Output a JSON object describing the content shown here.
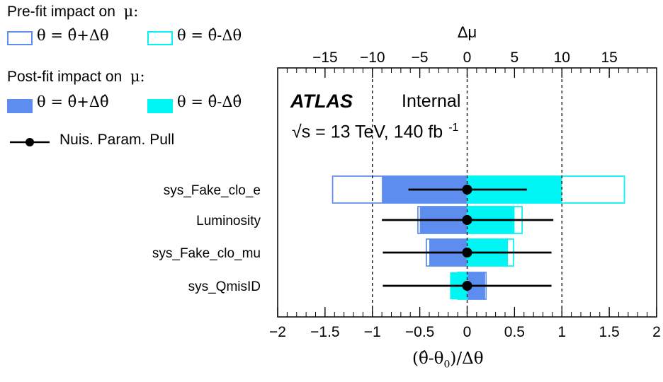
{
  "legend": {
    "prefit_title": "Pre-fit impact on",
    "postfit_title": "Post-fit impact on",
    "mu_symbol": "μ:",
    "prefit_up_label": "θ = θ̂+Δθ",
    "prefit_down_label": "θ = θ̂-Δθ",
    "postfit_up_label": "θ = θ̂+Δθ̂",
    "postfit_down_label": "θ = θ̂-Δθ̂",
    "pull_label": "Nuis. Param. Pull"
  },
  "annotations": {
    "atlas": "ATLAS",
    "internal": "Internal",
    "energy_text": "√s = 13 TeV, 140 fb",
    "lumi_exp": "-1"
  },
  "colors": {
    "up": "#5e8df0",
    "down": "#00f5f5"
  },
  "chart_data": {
    "type": "bar",
    "orientation": "horizontal",
    "title": "",
    "xlabel": "(θ̂-θ0)/Δθ",
    "xlim": [
      -2,
      2
    ],
    "xticks": [
      "−2",
      "−1.5",
      "−1",
      "−0.5",
      "0",
      "0.5",
      "1",
      "1.5",
      "2"
    ],
    "x2label": "Δμ",
    "x2lim": [
      -20,
      20
    ],
    "x2ticks": [
      "−15",
      "−10",
      "−5",
      "0",
      "5",
      "10",
      "15"
    ],
    "categories": [
      "sys_Fake_clo_e",
      "Luminosity",
      "sys_Fake_clo_mu",
      "sys_QmisID"
    ],
    "series": [
      {
        "name": "Pre-fit θ = θ̂+Δθ",
        "style": "outline",
        "values": [
          -14.2,
          -5.2,
          -4.3,
          2.0
        ]
      },
      {
        "name": "Pre-fit θ = θ̂-Δθ",
        "style": "outline",
        "values": [
          16.6,
          5.8,
          4.9,
          -1.0
        ]
      },
      {
        "name": "Post-fit θ = θ̂+Δθ̂",
        "style": "filled",
        "values": [
          -9.0,
          -5.0,
          -4.0,
          1.9
        ]
      },
      {
        "name": "Post-fit θ = θ̂-Δθ̂",
        "style": "filled",
        "values": [
          10.0,
          5.0,
          4.3,
          -1.8
        ]
      }
    ],
    "pulls": {
      "name": "Nuis. Param. Pull",
      "values": [
        0.0,
        0.0,
        0.0,
        0.0
      ],
      "err_low": [
        -0.62,
        -0.9,
        -0.89,
        -0.89
      ],
      "err_high": [
        0.63,
        0.91,
        0.89,
        0.89
      ]
    },
    "reference_lines": [
      -1,
      0,
      1
    ],
    "grid": false
  }
}
